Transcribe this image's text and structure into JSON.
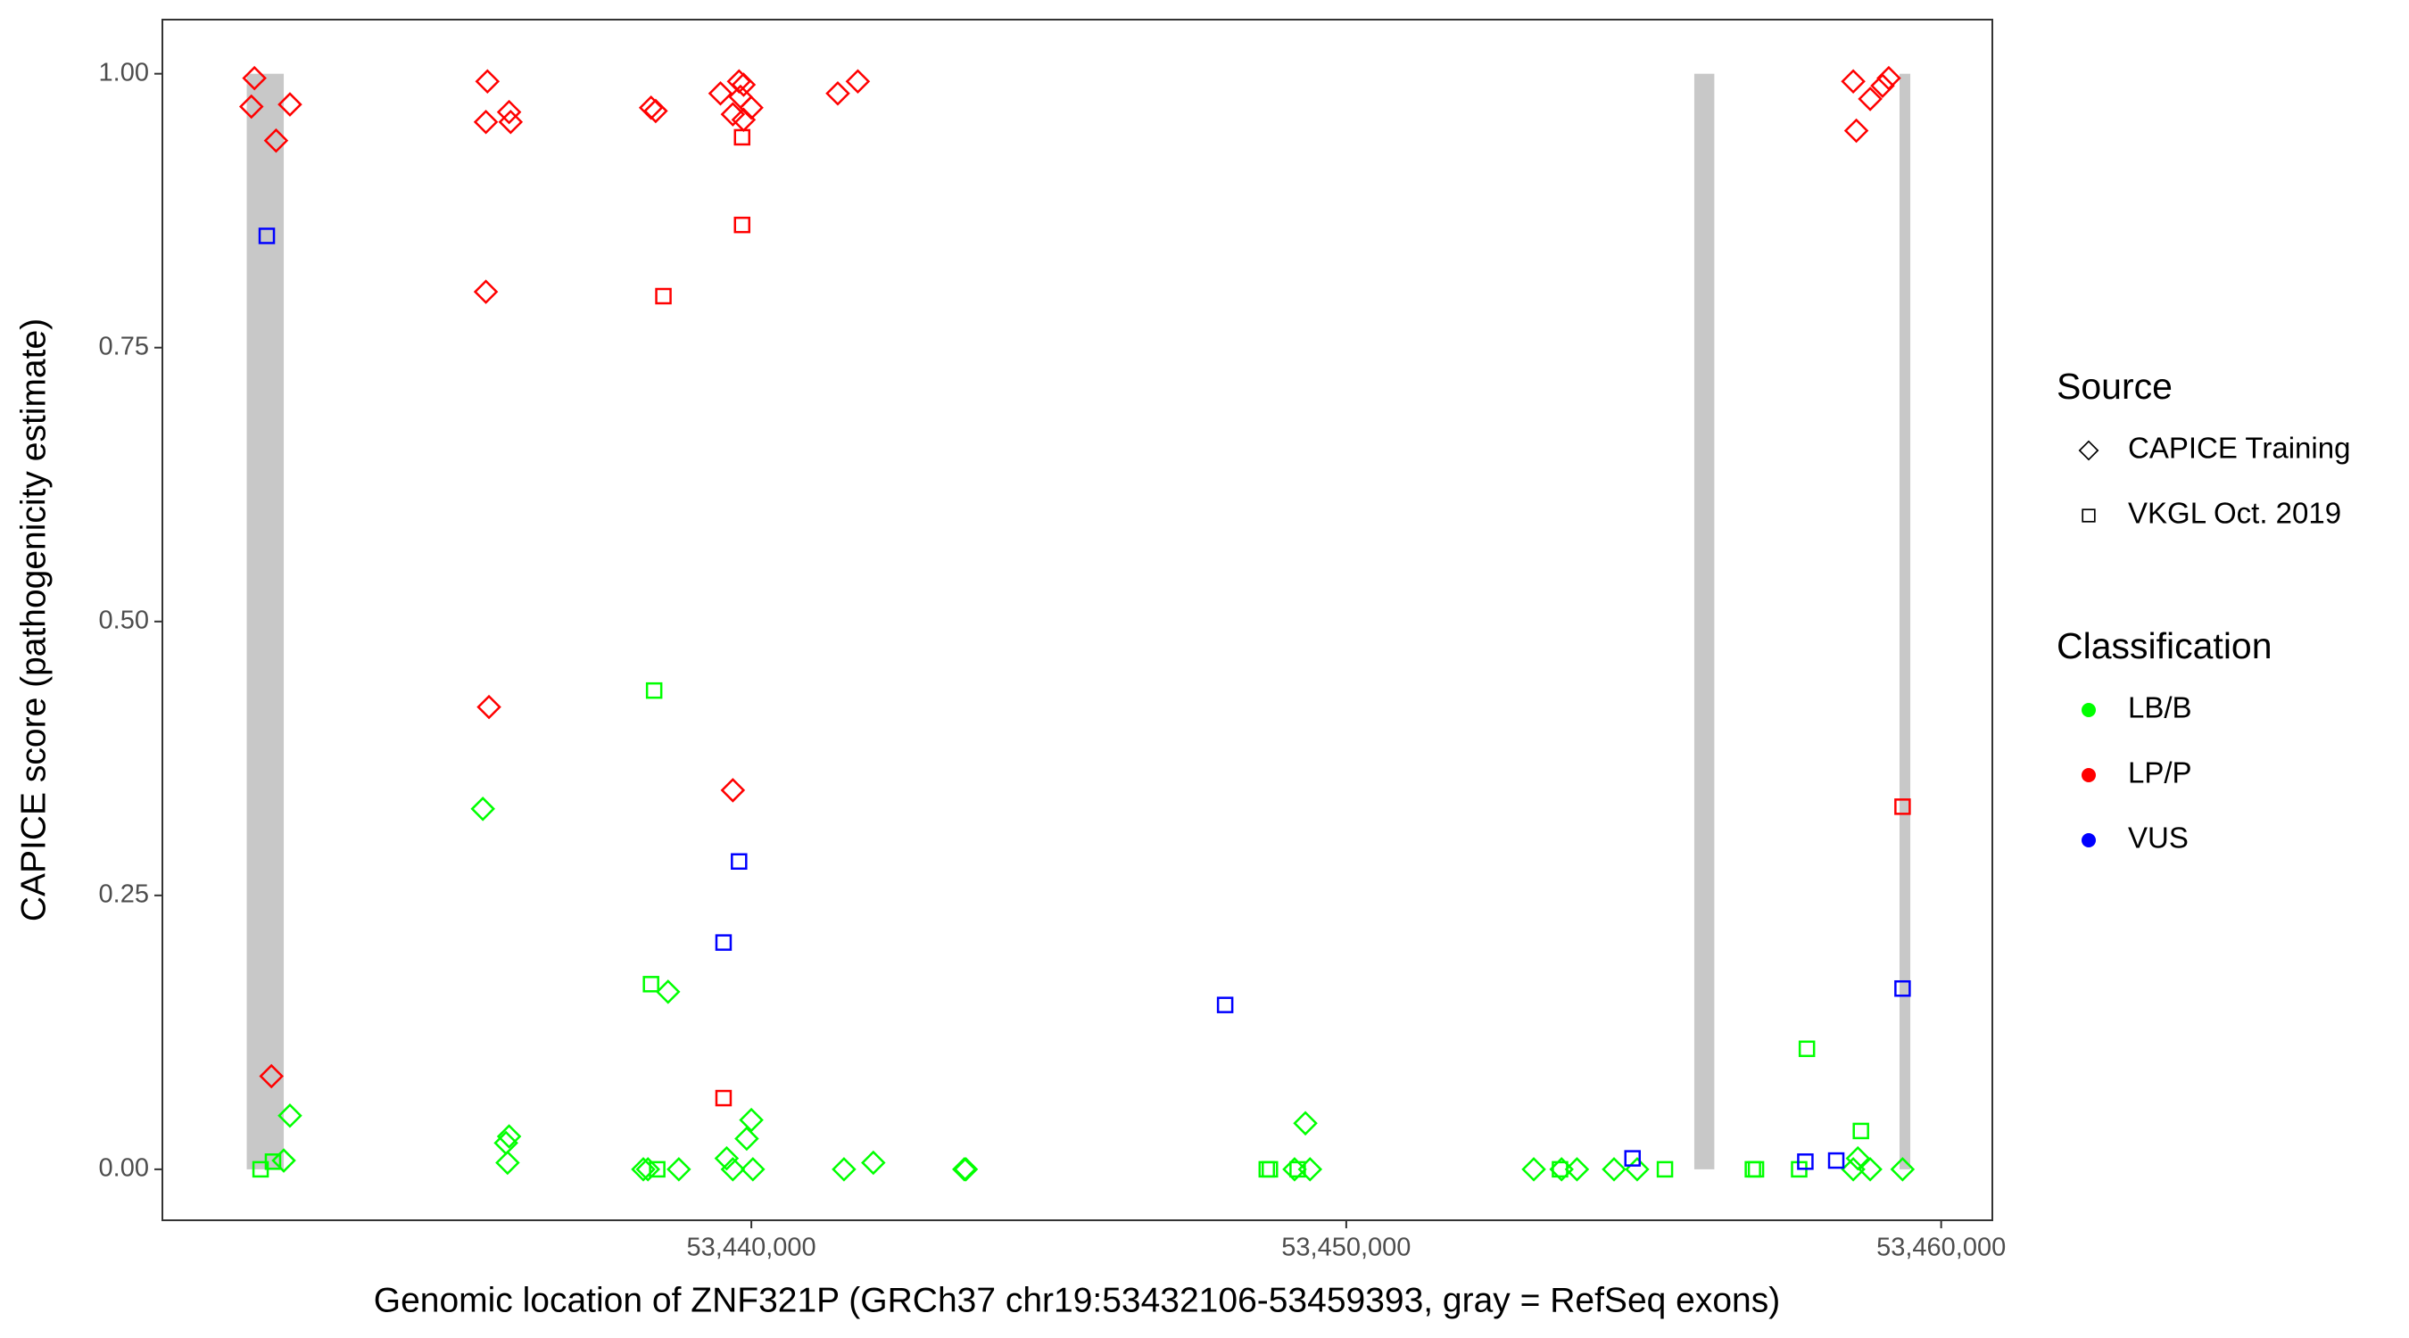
{
  "chart_data": {
    "type": "scatter",
    "x_label": "Genomic location of ZNF321P (GRCh37 chr19:53432106-53459393, gray = RefSeq exons)",
    "y_label": "CAPICE score (pathogenicity estimate)",
    "xlim": [
      53430100,
      53460860
    ],
    "ylim": [
      -0.0465,
      1.0494
    ],
    "xticks": [
      {
        "value": 53440000,
        "label": "53,440,000"
      },
      {
        "value": 53450000,
        "label": "53,450,000"
      },
      {
        "value": 53460000,
        "label": "53,460,000"
      }
    ],
    "yticks": [
      {
        "value": 0,
        "label": "0.00"
      },
      0.25,
      {
        "value": 0.5,
        "label": "0.50"
      },
      0.75,
      {
        "value": 1,
        "label": "1.00"
      }
    ],
    "grid": false,
    "exon_color": "#c8c8c8",
    "exon_y": [
      0,
      1
    ],
    "exons": [
      {
        "start": 53431518,
        "end": 53432140
      },
      {
        "start": 53455850,
        "end": 53456187
      },
      {
        "start": 53459300,
        "end": 53459481
      }
    ],
    "legends": [
      {
        "title": "Source",
        "entries": [
          {
            "label": "CAPICE Training",
            "shape": "diamond"
          },
          {
            "label": "VKGL Oct. 2019",
            "shape": "square"
          }
        ]
      },
      {
        "title": "Classification",
        "entries": [
          {
            "label": "LB/B",
            "color": "#00ff00"
          },
          {
            "label": "LP/P",
            "color": "#ff0000"
          },
          {
            "label": "VUS",
            "color": "#0000ff"
          }
        ]
      }
    ],
    "series": [
      {
        "source": "CAPICE Training",
        "classification": "LB/B",
        "x": [
          53432244,
          53432140,
          53435487,
          53435928,
          53435876,
          53435902,
          53438600,
          53438184,
          53438262,
          53438781,
          53439585,
          53439689,
          53440000,
          53439922,
          53440026,
          53441557,
          53442050,
          53443580,
          53443606,
          53449313,
          53449131,
          53449391,
          53453152,
          53453619,
          53453878,
          53454501,
          53454890,
          53458600,
          53458522,
          53458807,
          53459351
        ],
        "y": [
          0.049,
          0.008,
          0.329,
          0.03,
          0.024,
          0.006,
          0.162,
          0,
          0,
          0,
          0.01,
          0,
          0.045,
          0.028,
          0,
          0,
          0.006,
          0,
          0,
          0.042,
          0,
          0,
          0,
          0,
          0,
          0,
          0,
          0.01,
          0,
          0,
          0
        ]
      },
      {
        "source": "VKGL Oct. 2019",
        "classification": "LB/B",
        "x": [
          53431751,
          53431959,
          53438366,
          53438314,
          53438418,
          53448664,
          53448716,
          53449183,
          53453593,
          53455357,
          53456835,
          53456887,
          53457613,
          53457743,
          53458651
        ],
        "y": [
          0,
          0.007,
          0.437,
          0.169,
          0,
          0,
          0,
          0,
          0,
          0,
          0,
          0,
          0,
          0.11,
          0.035
        ]
      },
      {
        "source": "CAPICE Training",
        "classification": "LP/P",
        "x": [
          53431647,
          53431596,
          53432244,
          53432011,
          53431933,
          53435564,
          53435538,
          53435928,
          53435954,
          53435538,
          53435590,
          53438314,
          53438392,
          53439481,
          53439793,
          53439870,
          53439689,
          53439818,
          53440000,
          53439870,
          53439689,
          53441453,
          53441790,
          53458522,
          53458574,
          53458807,
          53459015,
          53459119
        ],
        "y": [
          0.996,
          0.97,
          0.972,
          0.939,
          0.085,
          0.993,
          0.956,
          0.965,
          0.956,
          0.801,
          0.422,
          0.969,
          0.966,
          0.982,
          0.993,
          0.99,
          0.963,
          0.979,
          0.969,
          0.958,
          0.346,
          0.982,
          0.993,
          0.993,
          0.948,
          0.977,
          0.989,
          0.996
        ]
      },
      {
        "source": "VKGL Oct. 2019",
        "classification": "LP/P",
        "x": [
          53438522,
          53439845,
          53439845,
          53439533,
          53459351
        ],
        "y": [
          0.797,
          0.942,
          0.862,
          0.065,
          0.331
        ]
      },
      {
        "source": "VKGL Oct. 2019",
        "classification": "VUS",
        "x": [
          53431855,
          53439793,
          53439533,
          53447964,
          53454812,
          53457717,
          53458236,
          53459351
        ],
        "y": [
          0.852,
          0.281,
          0.207,
          0.15,
          0.01,
          0.007,
          0.008,
          0.165
        ]
      }
    ]
  }
}
